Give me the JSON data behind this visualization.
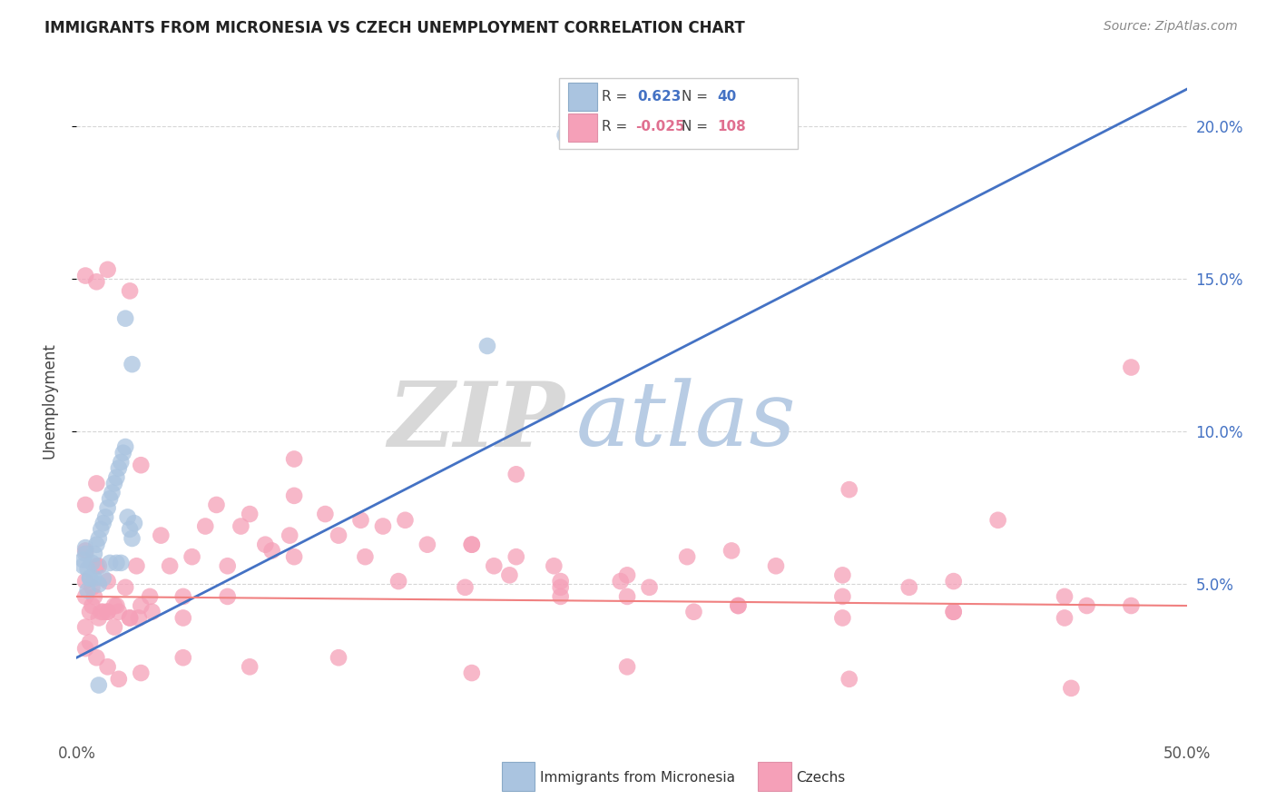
{
  "title": "IMMIGRANTS FROM MICRONESIA VS CZECH UNEMPLOYMENT CORRELATION CHART",
  "source": "Source: ZipAtlas.com",
  "ylabel": "Unemployment",
  "xlim": [
    0.0,
    0.5
  ],
  "ylim": [
    0.0,
    0.22
  ],
  "yticks": [
    0.05,
    0.1,
    0.15,
    0.2
  ],
  "ytick_labels": [
    "5.0%",
    "10.0%",
    "15.0%",
    "20.0%"
  ],
  "xtick_left_label": "0.0%",
  "xtick_right_label": "50.0%",
  "blue_R": "0.623",
  "blue_N": "40",
  "pink_R": "-0.025",
  "pink_N": "108",
  "blue_scatter_x": [
    0.004,
    0.003,
    0.005,
    0.006,
    0.007,
    0.008,
    0.009,
    0.01,
    0.011,
    0.012,
    0.013,
    0.014,
    0.015,
    0.016,
    0.017,
    0.018,
    0.019,
    0.02,
    0.021,
    0.022,
    0.023,
    0.024,
    0.025,
    0.026,
    0.22,
    0.185,
    0.01,
    0.005,
    0.008,
    0.004,
    0.003,
    0.006,
    0.015,
    0.02,
    0.012,
    0.01,
    0.025,
    0.018,
    0.3,
    0.022
  ],
  "blue_scatter_y": [
    0.062,
    0.058,
    0.055,
    0.052,
    0.057,
    0.06,
    0.063,
    0.065,
    0.068,
    0.07,
    0.072,
    0.075,
    0.078,
    0.08,
    0.083,
    0.085,
    0.088,
    0.09,
    0.093,
    0.095,
    0.072,
    0.068,
    0.065,
    0.07,
    0.197,
    0.128,
    0.05,
    0.048,
    0.052,
    0.06,
    0.056,
    0.052,
    0.057,
    0.057,
    0.052,
    0.017,
    0.122,
    0.057,
    0.207,
    0.137
  ],
  "blue_line_x": [
    0.0,
    0.5
  ],
  "blue_line_y": [
    0.026,
    0.212
  ],
  "pink_line_x": [
    0.0,
    0.5
  ],
  "pink_line_y": [
    0.046,
    0.043
  ],
  "pink_scatter_x": [
    0.004,
    0.006,
    0.008,
    0.01,
    0.012,
    0.014,
    0.004,
    0.006,
    0.01,
    0.014,
    0.018,
    0.022,
    0.028,
    0.033,
    0.042,
    0.052,
    0.063,
    0.074,
    0.085,
    0.096,
    0.112,
    0.13,
    0.145,
    0.175,
    0.195,
    0.215,
    0.245,
    0.275,
    0.295,
    0.315,
    0.345,
    0.375,
    0.395,
    0.415,
    0.445,
    0.475,
    0.004,
    0.009,
    0.014,
    0.019,
    0.024,
    0.029,
    0.048,
    0.068,
    0.098,
    0.128,
    0.158,
    0.188,
    0.218,
    0.248,
    0.004,
    0.007,
    0.011,
    0.017,
    0.024,
    0.034,
    0.048,
    0.068,
    0.088,
    0.118,
    0.148,
    0.178,
    0.198,
    0.218,
    0.248,
    0.278,
    0.298,
    0.345,
    0.395,
    0.445,
    0.004,
    0.009,
    0.014,
    0.024,
    0.038,
    0.058,
    0.078,
    0.098,
    0.138,
    0.178,
    0.218,
    0.258,
    0.298,
    0.345,
    0.395,
    0.455,
    0.004,
    0.009,
    0.014,
    0.019,
    0.029,
    0.048,
    0.078,
    0.118,
    0.178,
    0.248,
    0.348,
    0.448,
    0.004,
    0.009,
    0.029,
    0.098,
    0.198,
    0.348,
    0.475,
    0.007,
    0.017,
    0.027
  ],
  "pink_scatter_y": [
    0.051,
    0.041,
    0.046,
    0.056,
    0.041,
    0.041,
    0.036,
    0.031,
    0.039,
    0.041,
    0.043,
    0.049,
    0.039,
    0.046,
    0.056,
    0.059,
    0.076,
    0.069,
    0.063,
    0.066,
    0.073,
    0.059,
    0.051,
    0.049,
    0.053,
    0.056,
    0.051,
    0.059,
    0.061,
    0.056,
    0.053,
    0.049,
    0.051,
    0.071,
    0.046,
    0.043,
    0.061,
    0.056,
    0.051,
    0.041,
    0.039,
    0.043,
    0.039,
    0.046,
    0.059,
    0.071,
    0.063,
    0.056,
    0.049,
    0.053,
    0.046,
    0.043,
    0.041,
    0.036,
    0.039,
    0.041,
    0.046,
    0.056,
    0.061,
    0.066,
    0.071,
    0.063,
    0.059,
    0.051,
    0.046,
    0.041,
    0.043,
    0.039,
    0.041,
    0.039,
    0.151,
    0.149,
    0.153,
    0.146,
    0.066,
    0.069,
    0.073,
    0.079,
    0.069,
    0.063,
    0.046,
    0.049,
    0.043,
    0.046,
    0.041,
    0.043,
    0.029,
    0.026,
    0.023,
    0.019,
    0.021,
    0.026,
    0.023,
    0.026,
    0.021,
    0.023,
    0.019,
    0.016,
    0.076,
    0.083,
    0.089,
    0.091,
    0.086,
    0.081,
    0.121,
    0.049,
    0.043,
    0.056
  ],
  "background_color": "#ffffff",
  "grid_color": "#cccccc",
  "blue_line_color": "#4472c4",
  "pink_line_color": "#f08080",
  "blue_scatter_color": "#aac4e0",
  "pink_scatter_color": "#f5a0b8",
  "blue_text_color": "#4472c4",
  "pink_text_color": "#e07090",
  "right_tick_color": "#4472c4",
  "watermark_zip_color": "#d8d8d8",
  "watermark_atlas_color": "#b8cce4"
}
